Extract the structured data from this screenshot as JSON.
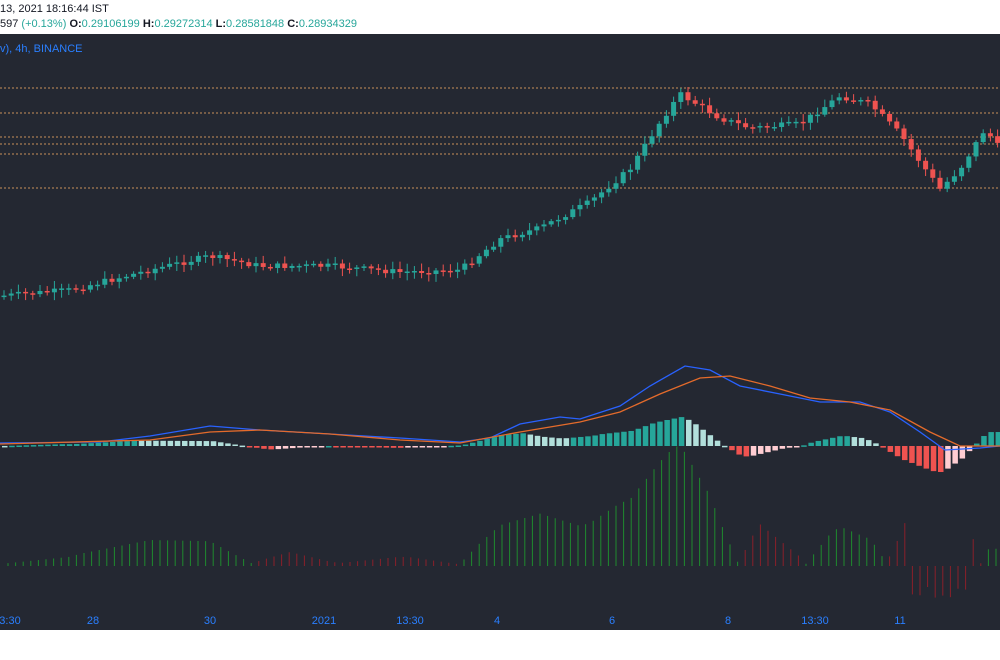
{
  "header": {
    "timestamp": "13, 2021 18:16:44 IST",
    "change_prefix": "597",
    "change_text": "(+0.13%)",
    "o_label": "O:",
    "o_value": "0.29106199",
    "h_label": "H:",
    "h_value": "0.29272314",
    "l_label": "L:",
    "l_value": "0.28581848",
    "c_label": "C:",
    "c_value": "0.28934329"
  },
  "chart": {
    "symbol_label": "v), 4h, BINANCE",
    "colors": {
      "background": "#242832",
      "up": "#26a69a",
      "down": "#ef5350",
      "up_light": "#b2dfdb",
      "down_light": "#ffcdd2",
      "macd": "#2962ff",
      "signal": "#e46b2b",
      "vol_up": "#1f8a2e",
      "vol_down": "#8a1f2a",
      "level": "#c9905a",
      "axis_text": "#2a7fff"
    }
  },
  "time_axis": {
    "ticks": [
      "3:30",
      "28",
      "30",
      "2021",
      "13:30",
      "4",
      "6",
      "8",
      "13:30",
      "11"
    ]
  }
}
